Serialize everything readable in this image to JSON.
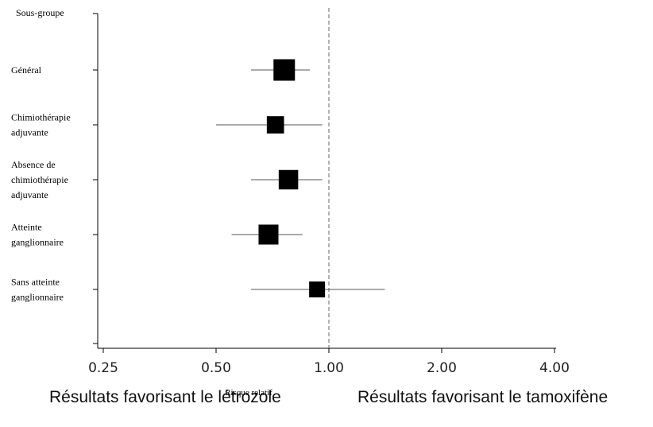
{
  "chart_data": {
    "type": "forest",
    "header": "Sous-groupe",
    "xlabel": "Risque relatif",
    "x_scale": "log2",
    "xlim": [
      0.25,
      4.0
    ],
    "xticks": [
      "0.25",
      "0.50",
      "1.00",
      "2.00",
      "4.00"
    ],
    "reference_line": 1.0,
    "rows": [
      {
        "label": [
          "Général"
        ],
        "estimate": 0.76,
        "lower": 0.62,
        "upper": 0.89,
        "weight": 1.0
      },
      {
        "label": [
          "Chimiothérapie",
          "adjuvante"
        ],
        "estimate": 0.72,
        "lower": 0.5,
        "upper": 0.96,
        "weight": 0.62
      },
      {
        "label": [
          "Absence de",
          "chimiothérapie",
          "adjuvante"
        ],
        "estimate": 0.78,
        "lower": 0.62,
        "upper": 0.96,
        "weight": 0.82
      },
      {
        "label": [
          "Atteinte",
          "ganglionnaire"
        ],
        "estimate": 0.69,
        "lower": 0.55,
        "upper": 0.85,
        "weight": 0.86
      },
      {
        "label": [
          "Sans atteinte",
          "ganglionnaire"
        ],
        "estimate": 0.93,
        "lower": 0.62,
        "upper": 1.41,
        "weight": 0.5
      }
    ],
    "favours_left": "Résultats favorisant le létrozole",
    "favours_right": "Résultats favorisant le tamoxifène"
  }
}
